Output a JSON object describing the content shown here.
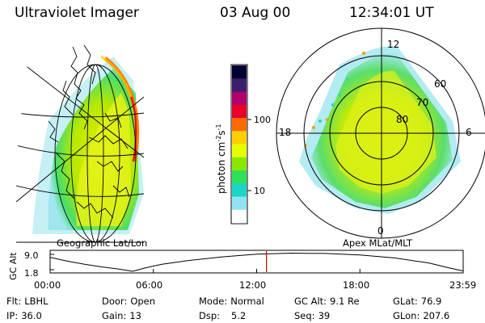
{
  "header": {
    "title": "Ultraviolet Imager",
    "date": "03 Aug 00",
    "time": "12:34:01 UT"
  },
  "left_panel": {
    "caption": "Geographic Lat/Lon"
  },
  "right_panel": {
    "caption": "Apex MLat/MLT",
    "mlt_labels": [
      "12",
      "18",
      "6",
      "0"
    ],
    "mlat_labels": [
      "60",
      "70",
      "80"
    ]
  },
  "colorbar": {
    "label": "photon cm",
    "label_exp1": "-2",
    "label_mid": "s",
    "label_exp2": "-1",
    "tick_labels": [
      "100",
      "10"
    ],
    "scale": "log",
    "colors": [
      "#000033",
      "#3c1e6e",
      "#b0006a",
      "#e8002a",
      "#ff6a00",
      "#ffd000",
      "#e6ff00",
      "#8ce600",
      "#2ee05a",
      "#1ad6c8",
      "#8fe3f2",
      "#ffffff"
    ]
  },
  "altitude_strip": {
    "axis_label": "GC Alt",
    "y_ticks": [
      "9.0",
      "1.8"
    ],
    "x_ticks": [
      "00:00",
      "06:00",
      "12:00",
      "18:00",
      "23:59"
    ],
    "current_time_hours": 12.57
  },
  "footer": {
    "rows": [
      [
        {
          "key": "Flt:",
          "value": "LBHL"
        },
        {
          "key": "Door:",
          "value": "Open"
        },
        {
          "key": "Mode:",
          "value": "Normal"
        },
        {
          "key": "GC Alt:",
          "value": "9.1 Re"
        },
        {
          "key": "GLat:",
          "value": "76.9"
        }
      ],
      [
        {
          "key": "IP:",
          "value": "36.0"
        },
        {
          "key": "Gain:",
          "value": "13"
        },
        {
          "key": "Dsp:",
          "value": "5.2"
        },
        {
          "key": "Seq:",
          "value": "39"
        },
        {
          "key": "GLon:",
          "value": "207.6"
        }
      ]
    ]
  }
}
